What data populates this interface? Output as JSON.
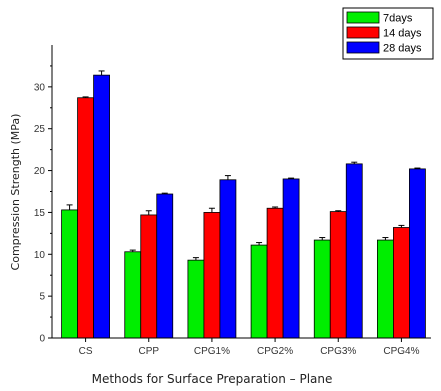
{
  "chart_data": {
    "type": "bar",
    "xlabel": "Methods for Surface Preparation – Plane",
    "ylabel": "Compression Strength (MPa)",
    "ylim": [
      0,
      35
    ],
    "yticks": [
      0,
      5,
      10,
      15,
      20,
      25,
      30
    ],
    "categories": [
      "CS",
      "CPP",
      "CPG1%",
      "CPG2%",
      "CPG3%",
      "CPG4%"
    ],
    "legend_position": "top-right",
    "series": [
      {
        "name": "7days",
        "color": "#00ee00",
        "values": [
          15.3,
          10.3,
          9.3,
          11.1,
          11.7,
          11.7
        ],
        "errors": [
          0.6,
          0.2,
          0.3,
          0.3,
          0.3,
          0.3
        ]
      },
      {
        "name": "14 days",
        "color": "#ff0000",
        "values": [
          28.7,
          14.7,
          15.0,
          15.5,
          15.1,
          13.2
        ],
        "errors": [
          0.1,
          0.5,
          0.5,
          0.15,
          0.1,
          0.25
        ]
      },
      {
        "name": "28 days",
        "color": "#0000ff",
        "values": [
          31.4,
          17.2,
          18.9,
          19.0,
          20.8,
          20.2
        ],
        "errors": [
          0.5,
          0.1,
          0.5,
          0.1,
          0.2,
          0.1
        ]
      }
    ]
  }
}
